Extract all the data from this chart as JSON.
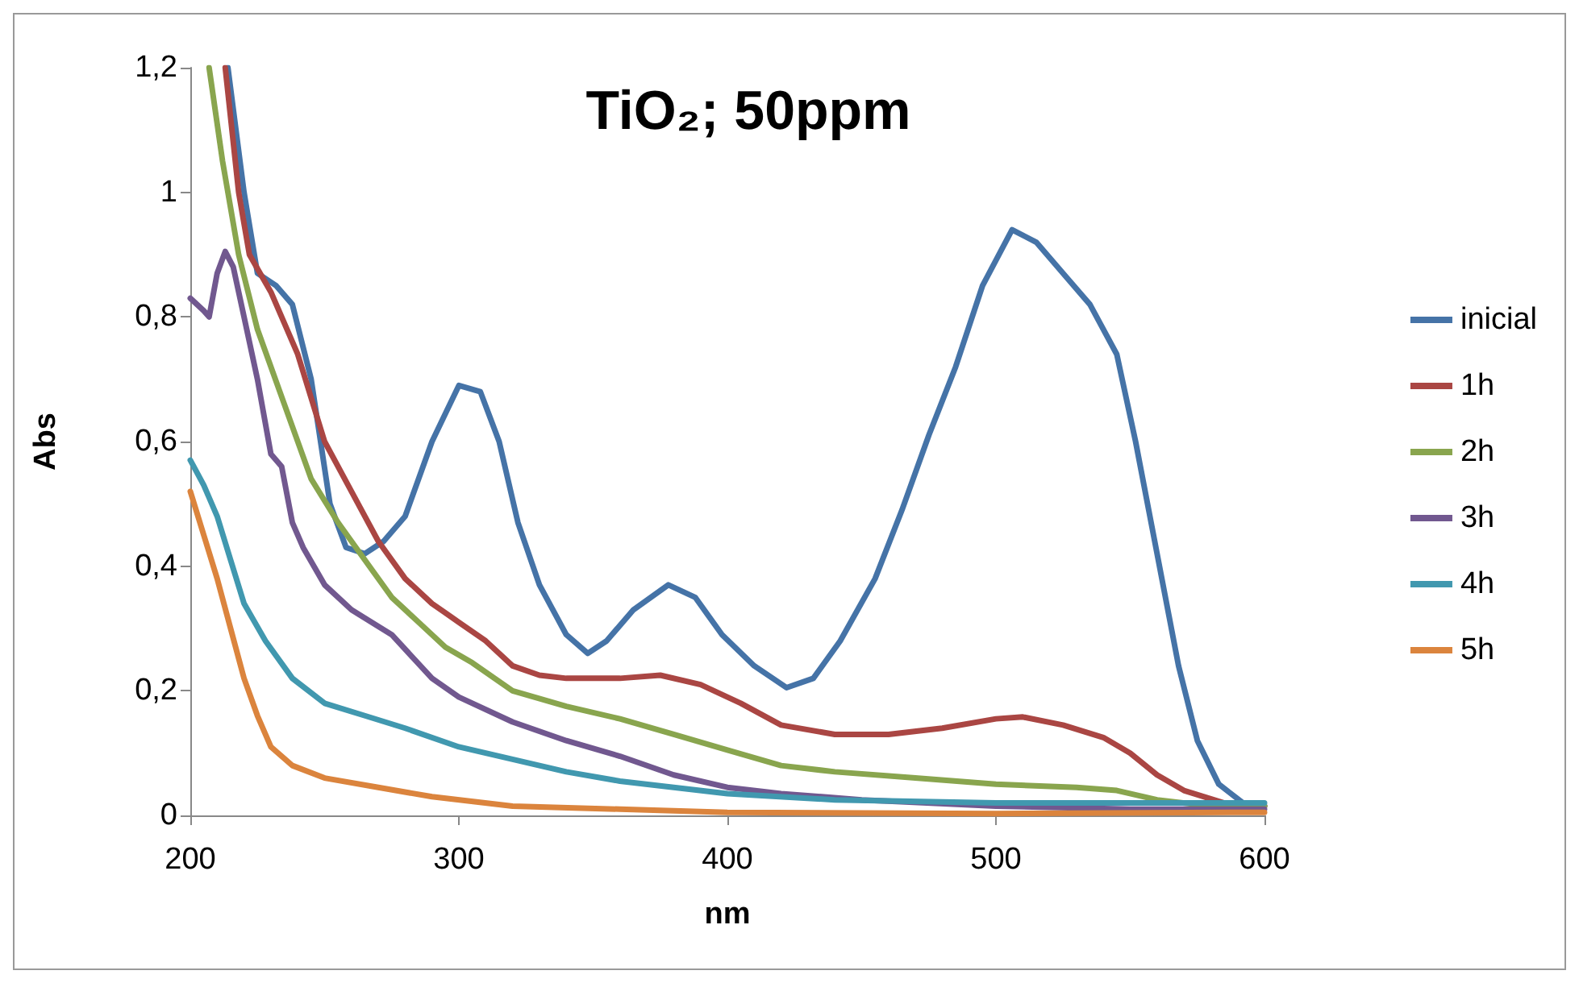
{
  "chart_data": {
    "type": "line",
    "title": "TiO₂; 50ppm",
    "xlabel": "nm",
    "ylabel": "Abs",
    "xlim": [
      200,
      600
    ],
    "xticks": [
      200,
      300,
      400,
      500,
      600
    ],
    "ylim": [
      0,
      1.2
    ],
    "yticks": [
      0,
      {
        "value": 0.2,
        "label": "0,2"
      },
      {
        "value": 0.4,
        "label": "0,4"
      },
      {
        "value": 0.6,
        "label": "0,6"
      },
      {
        "value": 0.8,
        "label": "0,8"
      },
      1,
      {
        "value": 1.2,
        "label": "1,2"
      }
    ],
    "grid": false,
    "legend": "right",
    "marker": "none",
    "line_style": "solid",
    "series": [
      {
        "name": "inicial",
        "color": "#4573a7",
        "x": [
          214,
          220,
          225,
          232,
          238,
          245,
          252,
          258,
          265,
          272,
          280,
          290,
          300,
          308,
          315,
          322,
          330,
          340,
          348,
          355,
          365,
          378,
          388,
          398,
          410,
          422,
          432,
          442,
          455,
          465,
          475,
          485,
          495,
          506,
          515,
          525,
          535,
          545,
          552,
          560,
          568,
          575,
          583,
          592,
          600
        ],
        "values": [
          1.2,
          1.0,
          0.87,
          0.85,
          0.82,
          0.7,
          0.5,
          0.43,
          0.42,
          0.44,
          0.48,
          0.6,
          0.69,
          0.68,
          0.6,
          0.47,
          0.37,
          0.29,
          0.26,
          0.28,
          0.33,
          0.37,
          0.35,
          0.29,
          0.24,
          0.205,
          0.22,
          0.28,
          0.38,
          0.49,
          0.61,
          0.72,
          0.85,
          0.94,
          0.92,
          0.87,
          0.82,
          0.74,
          0.6,
          0.42,
          0.24,
          0.12,
          0.05,
          0.02,
          0.015
        ]
      },
      {
        "name": "1h",
        "color": "#aa4643",
        "x": [
          213,
          218,
          222,
          230,
          240,
          250,
          260,
          270,
          280,
          290,
          300,
          310,
          320,
          330,
          340,
          360,
          375,
          390,
          405,
          420,
          440,
          460,
          480,
          500,
          510,
          525,
          540,
          550,
          560,
          570,
          585,
          600
        ],
        "values": [
          1.2,
          1.0,
          0.9,
          0.84,
          0.74,
          0.6,
          0.52,
          0.44,
          0.38,
          0.34,
          0.31,
          0.28,
          0.24,
          0.225,
          0.22,
          0.22,
          0.225,
          0.21,
          0.18,
          0.145,
          0.13,
          0.13,
          0.14,
          0.155,
          0.158,
          0.145,
          0.125,
          0.1,
          0.065,
          0.04,
          0.02,
          0.015
        ]
      },
      {
        "name": "2h",
        "color": "#89a54e",
        "x": [
          207,
          212,
          218,
          225,
          235,
          245,
          255,
          265,
          275,
          285,
          295,
          305,
          320,
          340,
          360,
          380,
          400,
          420,
          440,
          470,
          500,
          530,
          545,
          560,
          580,
          600
        ],
        "values": [
          1.2,
          1.05,
          0.9,
          0.78,
          0.66,
          0.54,
          0.47,
          0.41,
          0.35,
          0.31,
          0.27,
          0.245,
          0.2,
          0.175,
          0.155,
          0.13,
          0.105,
          0.08,
          0.07,
          0.06,
          0.05,
          0.045,
          0.04,
          0.025,
          0.015,
          0.015
        ]
      },
      {
        "name": "3h",
        "color": "#71588f",
        "x": [
          200,
          205,
          207,
          210,
          213,
          216,
          220,
          225,
          230,
          234,
          238,
          242,
          250,
          260,
          275,
          290,
          300,
          320,
          340,
          360,
          380,
          400,
          420,
          450,
          500,
          550,
          600
        ],
        "values": [
          0.83,
          0.81,
          0.8,
          0.87,
          0.905,
          0.88,
          0.8,
          0.7,
          0.58,
          0.56,
          0.47,
          0.43,
          0.37,
          0.33,
          0.29,
          0.22,
          0.19,
          0.15,
          0.12,
          0.095,
          0.065,
          0.045,
          0.035,
          0.025,
          0.015,
          0.01,
          0.01
        ]
      },
      {
        "name": "4h",
        "color": "#4198af",
        "x": [
          200,
          205,
          210,
          215,
          220,
          228,
          238,
          250,
          265,
          280,
          300,
          320,
          340,
          360,
          380,
          400,
          440,
          500,
          550,
          600
        ],
        "values": [
          0.57,
          0.53,
          0.48,
          0.41,
          0.34,
          0.28,
          0.22,
          0.18,
          0.16,
          0.14,
          0.11,
          0.09,
          0.07,
          0.055,
          0.045,
          0.035,
          0.025,
          0.02,
          0.02,
          0.02
        ]
      },
      {
        "name": "5h",
        "color": "#db843d",
        "x": [
          200,
          205,
          210,
          215,
          220,
          225,
          230,
          238,
          250,
          270,
          290,
          320,
          360,
          400,
          500,
          600
        ],
        "values": [
          0.52,
          0.45,
          0.38,
          0.3,
          0.22,
          0.16,
          0.11,
          0.08,
          0.06,
          0.045,
          0.03,
          0.015,
          0.01,
          0.005,
          0.003,
          0.005
        ]
      }
    ]
  }
}
